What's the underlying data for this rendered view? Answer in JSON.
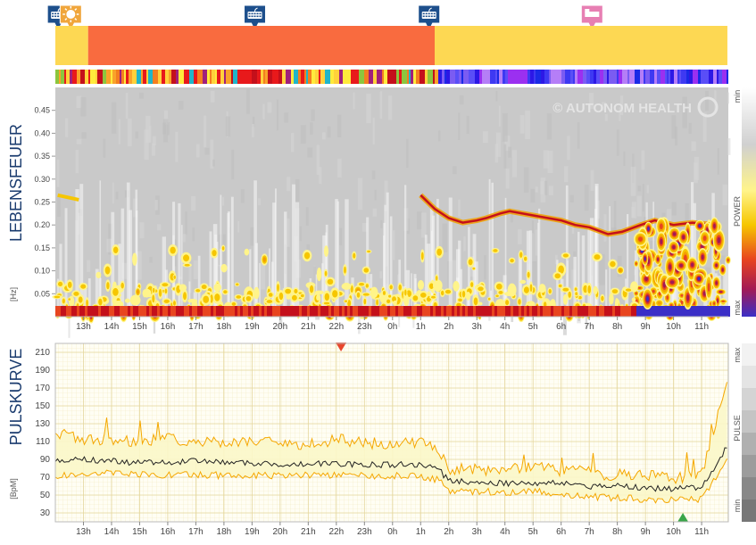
{
  "watermark": "© AUTONOM HEALTH",
  "colors": {
    "activity_yellow": "#fdd853",
    "activity_orange": "#f96b3f",
    "pulse_line": "#222222",
    "pulse_band": "#f5a700",
    "pulse_band_fill": "#fbf7c9",
    "marker_red": "#e8462c",
    "marker_green": "#3aa54a",
    "title_blue": "#1a3b6e"
  },
  "markers": [
    {
      "hour": 12.1,
      "icon": "keyboard-icon",
      "color": "#1d4f8c"
    },
    {
      "hour": 12.55,
      "icon": "sun-icon",
      "color": "#f0a63c"
    },
    {
      "hour": 19.1,
      "icon": "keyboard-icon",
      "color": "#1d4f8c"
    },
    {
      "hour": 1.3,
      "icon": "keyboard-icon",
      "color": "#1d4f8c"
    },
    {
      "hour": 7.1,
      "icon": "bed-icon",
      "color": "#e77fb3"
    }
  ],
  "activity_segments": [
    {
      "from": "12:00",
      "to": "13:10",
      "color": "#fdd853"
    },
    {
      "from": "13:10",
      "to": "01:30",
      "color": "#f96b3f"
    },
    {
      "from": "01:30",
      "to": "11:55",
      "color": "#fdd853"
    }
  ],
  "spectrogram": {
    "title": "LEBENSFEUER",
    "unit": "[Hz]",
    "y_ticks": [
      "0.45",
      "0.40",
      "0.35",
      "0.30",
      "0.25",
      "0.20",
      "0.15",
      "0.10",
      "0.05"
    ],
    "scale_labels": {
      "top": "min",
      "middle": "POWER",
      "bottom": "max"
    }
  },
  "x_ticks": [
    "13h",
    "14h",
    "15h",
    "16h",
    "17h",
    "18h",
    "19h",
    "20h",
    "21h",
    "22h",
    "23h",
    "0h",
    "1h",
    "2h",
    "3h",
    "4h",
    "5h",
    "6h",
    "7h",
    "8h",
    "9h",
    "10h",
    "11h"
  ],
  "pulse": {
    "title": "PULSKURVE",
    "unit": "[BpM]",
    "scale_labels": {
      "top": "max",
      "middle": "PULSE",
      "bottom": "min"
    }
  },
  "chart_data": {
    "type": "line",
    "title": "PULSKURVE",
    "ylabel": "[BpM]",
    "ylim": [
      20,
      220
    ],
    "y_ticks": [
      30,
      50,
      70,
      90,
      110,
      130,
      150,
      170,
      190,
      210
    ],
    "x": [
      "12:00",
      "13:00",
      "14:00",
      "15:00",
      "16:00",
      "17:00",
      "18:00",
      "19:00",
      "20:00",
      "21:00",
      "22:00",
      "23:00",
      "00:00",
      "01:00",
      "01:40",
      "02:00",
      "03:00",
      "04:00",
      "05:00",
      "06:00",
      "07:00",
      "08:00",
      "09:00",
      "10:00",
      "11:00",
      "11:55"
    ],
    "series": [
      {
        "values": [
          88,
          90,
          88,
          86,
          87,
          88,
          86,
          85,
          85,
          85,
          85,
          84,
          84,
          84,
          78,
          66,
          65,
          63,
          64,
          63,
          60,
          60,
          58,
          57,
          58,
          105
        ]
      },
      {
        "values": [
          120,
          112,
          112,
          110,
          112,
          112,
          110,
          110,
          108,
          108,
          112,
          108,
          108,
          108,
          100,
          80,
          78,
          80,
          82,
          78,
          75,
          73,
          72,
          70,
          72,
          180
        ]
      },
      {
        "values": [
          72,
          74,
          74,
          73,
          73,
          73,
          72,
          72,
          72,
          72,
          72,
          72,
          72,
          72,
          66,
          55,
          54,
          53,
          54,
          52,
          48,
          47,
          45,
          44,
          45,
          90
        ]
      }
    ],
    "markers": [
      {
        "label": "max",
        "x": "22:10",
        "value": 215
      },
      {
        "label": "min",
        "x": "10:20",
        "value": 22
      }
    ]
  }
}
